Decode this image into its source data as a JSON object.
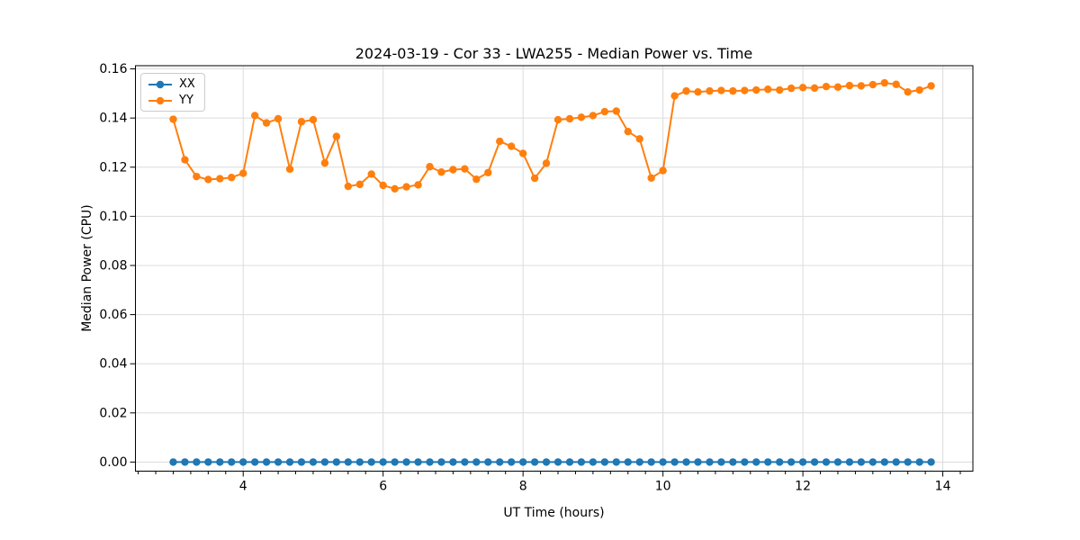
{
  "chart_data": {
    "type": "line",
    "title": "2024-03-19 - Cor 33 - LWA255 - Median Power vs. Time",
    "xlabel": "UT Time (hours)",
    "ylabel": "Median Power (CPU)",
    "xlim": [
      2.46,
      14.43
    ],
    "ylim": [
      -0.0037,
      0.1613
    ],
    "x_ticks": [
      4,
      6,
      8,
      10,
      12,
      14
    ],
    "x_tick_labels": [
      "4",
      "6",
      "8",
      "10",
      "12",
      "14"
    ],
    "x_minor_tick_step": 0.25,
    "y_ticks": [
      0.0,
      0.02,
      0.04,
      0.06,
      0.08,
      0.1,
      0.12,
      0.14,
      0.16
    ],
    "y_tick_labels": [
      "0.00",
      "0.02",
      "0.04",
      "0.06",
      "0.08",
      "0.10",
      "0.12",
      "0.14",
      "0.16"
    ],
    "grid": true,
    "legend": {
      "position": "upper left",
      "entries": [
        "XX",
        "YY"
      ]
    },
    "x": [
      3.0,
      3.167,
      3.333,
      3.5,
      3.667,
      3.833,
      4.0,
      4.167,
      4.333,
      4.5,
      4.667,
      4.833,
      5.0,
      5.167,
      5.333,
      5.5,
      5.667,
      5.833,
      6.0,
      6.167,
      6.333,
      6.5,
      6.667,
      6.833,
      7.0,
      7.167,
      7.333,
      7.5,
      7.667,
      7.833,
      8.0,
      8.167,
      8.333,
      8.5,
      8.667,
      8.833,
      9.0,
      9.167,
      9.333,
      9.5,
      9.667,
      9.833,
      10.0,
      10.167,
      10.333,
      10.5,
      10.667,
      10.833,
      11.0,
      11.167,
      11.333,
      11.5,
      11.667,
      11.833,
      12.0,
      12.167,
      12.333,
      12.5,
      12.667,
      12.833,
      13.0,
      13.167,
      13.333,
      13.5,
      13.667,
      13.833
    ],
    "series": [
      {
        "name": "XX",
        "color": "#1f77b4",
        "values": [
          0.0,
          0.0,
          0.0,
          0.0,
          0.0,
          0.0,
          0.0,
          0.0,
          0.0,
          0.0,
          0.0,
          0.0,
          0.0,
          0.0,
          0.0,
          0.0,
          0.0,
          0.0,
          0.0,
          0.0,
          0.0,
          0.0,
          0.0,
          0.0,
          0.0,
          0.0,
          0.0,
          0.0,
          0.0,
          0.0,
          0.0,
          0.0,
          0.0,
          0.0,
          0.0,
          0.0,
          0.0,
          0.0,
          0.0,
          0.0,
          0.0,
          0.0,
          0.0,
          0.0,
          0.0,
          0.0,
          0.0,
          0.0,
          0.0,
          0.0,
          0.0,
          0.0,
          0.0,
          0.0,
          0.0,
          0.0,
          0.0,
          0.0,
          0.0,
          0.0,
          0.0,
          0.0,
          0.0,
          0.0,
          0.0,
          0.0
        ]
      },
      {
        "name": "YY",
        "color": "#ff7f0e",
        "values": [
          0.1395,
          0.123,
          0.1162,
          0.115,
          0.1153,
          0.1158,
          0.1175,
          0.141,
          0.138,
          0.1397,
          0.1192,
          0.1385,
          0.1393,
          0.1217,
          0.1325,
          0.1122,
          0.113,
          0.1172,
          0.1126,
          0.1112,
          0.112,
          0.1128,
          0.1202,
          0.118,
          0.119,
          0.1193,
          0.1151,
          0.1178,
          0.1305,
          0.1285,
          0.1256,
          0.1155,
          0.1216,
          0.1393,
          0.1397,
          0.1403,
          0.141,
          0.1426,
          0.1428,
          0.1345,
          0.1315,
          0.1156,
          0.1186,
          0.149,
          0.151,
          0.1506,
          0.151,
          0.1512,
          0.151,
          0.1512,
          0.1514,
          0.1517,
          0.1514,
          0.1521,
          0.1524,
          0.1522,
          0.1528,
          0.1526,
          0.1532,
          0.1531,
          0.1536,
          0.1543,
          0.1537,
          0.1506,
          0.1514,
          0.1531
        ]
      }
    ]
  }
}
